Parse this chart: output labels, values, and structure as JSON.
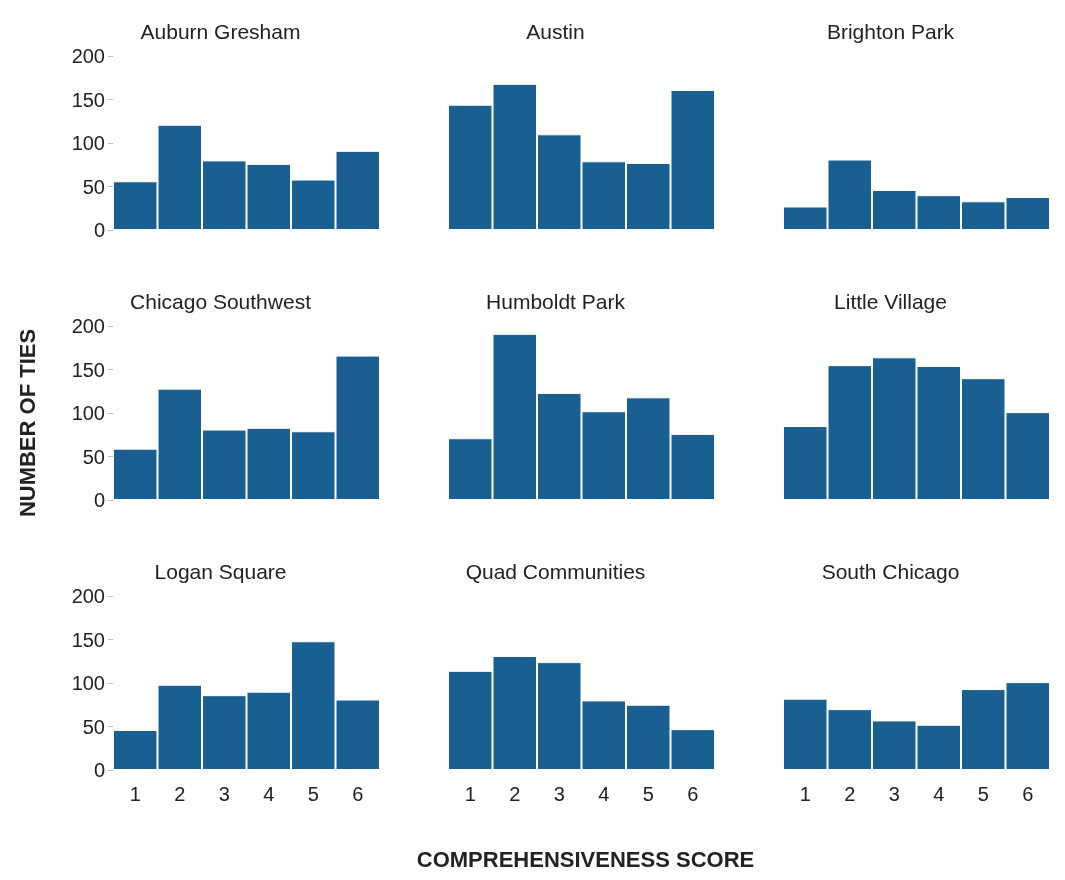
{
  "chart_data": [
    {
      "type": "bar",
      "title": "Auburn Gresham",
      "categories": [
        "1",
        "2",
        "3",
        "4",
        "5",
        "6"
      ],
      "values": [
        56,
        121,
        80,
        76,
        58,
        91
      ],
      "color": "#1a5f92",
      "ylim": [
        0,
        200
      ],
      "yticks": [
        0,
        50,
        100,
        150,
        200
      ],
      "tick_labels": "y"
    },
    {
      "type": "bar",
      "title": "Austin",
      "categories": [
        "1",
        "2",
        "3",
        "4",
        "5",
        "6"
      ],
      "values": [
        144,
        168,
        110,
        79,
        77,
        161
      ],
      "color": "#1a5f92",
      "ylim": [
        0,
        200
      ],
      "yticks": [
        0,
        50,
        100,
        150,
        200
      ],
      "tick_labels": false
    },
    {
      "type": "bar",
      "title": "Brighton Park",
      "categories": [
        "1",
        "2",
        "3",
        "4",
        "5",
        "6"
      ],
      "values": [
        27,
        81,
        46,
        40,
        33,
        38
      ],
      "color": "#1a5f92",
      "ylim": [
        0,
        200
      ],
      "yticks": [
        0,
        50,
        100,
        150,
        200
      ],
      "tick_labels": false
    },
    {
      "type": "bar",
      "title": "Chicago Southwest",
      "ylabel": "NUMBER OF TIES",
      "categories": [
        "1",
        "2",
        "3",
        "4",
        "5",
        "6"
      ],
      "values": [
        59,
        128,
        81,
        83,
        79,
        166
      ],
      "color": "#1a5f92",
      "ylim": [
        0,
        200
      ],
      "yticks": [
        0,
        50,
        100,
        150,
        200
      ],
      "tick_labels": "y"
    },
    {
      "type": "bar",
      "title": "Humboldt Park",
      "categories": [
        "1",
        "2",
        "3",
        "4",
        "5",
        "6"
      ],
      "values": [
        71,
        191,
        123,
        102,
        118,
        76
      ],
      "color": "#1a5f92",
      "ylim": [
        0,
        200
      ],
      "yticks": [
        0,
        50,
        100,
        150,
        200
      ],
      "tick_labels": false
    },
    {
      "type": "bar",
      "title": "Little Village",
      "categories": [
        "1",
        "2",
        "3",
        "4",
        "5",
        "6"
      ],
      "values": [
        85,
        155,
        164,
        154,
        140,
        101
      ],
      "color": "#1a5f92",
      "ylim": [
        0,
        200
      ],
      "yticks": [
        0,
        50,
        100,
        150,
        200
      ],
      "tick_labels": false
    },
    {
      "type": "bar",
      "title": "Logan Square",
      "categories": [
        "1",
        "2",
        "3",
        "4",
        "5",
        "6"
      ],
      "values": [
        46,
        98,
        86,
        90,
        148,
        81
      ],
      "color": "#1a5f92",
      "ylim": [
        0,
        200
      ],
      "yticks": [
        0,
        50,
        100,
        150,
        200
      ]
    },
    {
      "type": "bar",
      "title": "Quad Communities",
      "xlabel": "COMPREHENSIVENESS SCORE",
      "categories": [
        "1",
        "2",
        "3",
        "4",
        "5",
        "6"
      ],
      "values": [
        114,
        131,
        124,
        80,
        75,
        47
      ],
      "color": "#1a5f92",
      "ylim": [
        0,
        200
      ],
      "yticks": [
        0,
        50,
        100,
        150,
        200
      ],
      "tick_labels": "x"
    },
    {
      "type": "bar",
      "title": "South Chicago",
      "categories": [
        "1",
        "2",
        "3",
        "4",
        "5",
        "6"
      ],
      "values": [
        82,
        70,
        57,
        52,
        93,
        101
      ],
      "color": "#1a5f92",
      "ylim": [
        0,
        200
      ],
      "yticks": [
        0,
        50,
        100,
        150,
        200
      ],
      "tick_labels": "x"
    }
  ]
}
